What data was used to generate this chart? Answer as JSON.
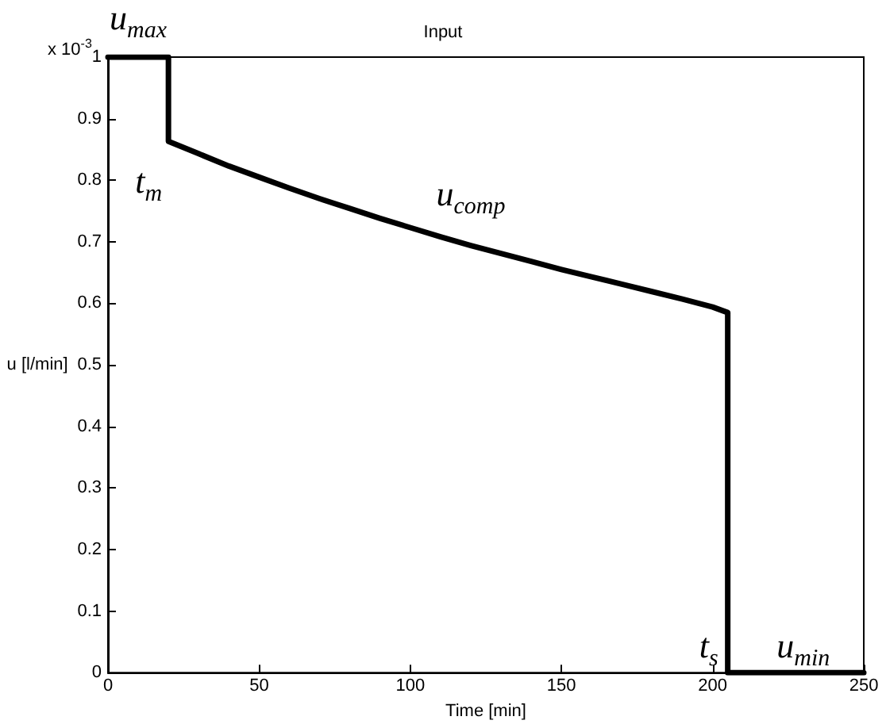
{
  "chart_data": {
    "type": "line",
    "title": "Input",
    "xlabel": "Time [min]",
    "ylabel": "u [l/min]",
    "xlim": [
      0,
      250
    ],
    "xticks": [
      0,
      50,
      100,
      150,
      200,
      250
    ],
    "ylim": [
      0,
      1
    ],
    "yticks": [
      0,
      0.1,
      0.2,
      0.3,
      0.4,
      0.5,
      0.6,
      0.7,
      0.8,
      0.9,
      1
    ],
    "grid": false,
    "marker": "none",
    "line_style": "solid",
    "series": [
      {
        "color": "#000000",
        "x": [
          0,
          20,
          20,
          30,
          40,
          50,
          60,
          70,
          80,
          90,
          100,
          110,
          120,
          130,
          140,
          150,
          160,
          170,
          180,
          190,
          200,
          205,
          205,
          250
        ],
        "values": [
          1,
          1,
          0.863,
          0.843,
          0.823,
          0.805,
          0.787,
          0.77,
          0.754,
          0.738,
          0.723,
          0.708,
          0.694,
          0.681,
          0.668,
          0.655,
          0.643,
          0.631,
          0.619,
          0.607,
          0.594,
          0.585,
          0,
          0
        ]
      }
    ],
    "annotations": [
      "x 10$^{-3}$",
      {
        "text": "u$_{max}$",
        "x": 10,
        "y": 1
      },
      {
        "text": "t$_{m}$",
        "x": 20,
        "y": 0.863
      },
      {
        "text": "u$_{comp}$",
        "x": 120,
        "y": 0.694
      },
      {
        "text": "t$_{s}$",
        "x": 205,
        "y": 0
      },
      {
        "text": "u$_{min}$",
        "x": 230,
        "y": 0
      }
    ]
  }
}
